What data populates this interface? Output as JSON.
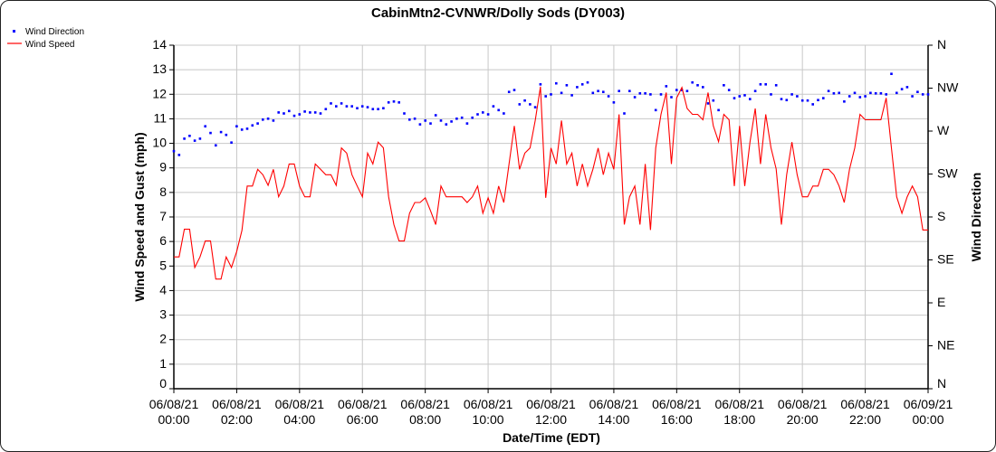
{
  "chart_data": {
    "type": "line",
    "title": "CabinMtn2-CVNWR/Dolly Sods (DY003)",
    "xlabel": "Date/Time (EDT)",
    "ylabel": "Wind Speed and Gust (mph)",
    "y2label": "Wind Direction",
    "ylim": [
      0,
      14
    ],
    "y2lim": [
      0,
      360
    ],
    "grid": true,
    "legend_position": "top-left",
    "x_interval_minutes": 10,
    "x_ticks": [
      {
        "date": "06/08/21",
        "time": "00:00"
      },
      {
        "date": "06/08/21",
        "time": "02:00"
      },
      {
        "date": "06/08/21",
        "time": "04:00"
      },
      {
        "date": "06/08/21",
        "time": "06:00"
      },
      {
        "date": "06/08/21",
        "time": "08:00"
      },
      {
        "date": "06/08/21",
        "time": "10:00"
      },
      {
        "date": "06/08/21",
        "time": "12:00"
      },
      {
        "date": "06/08/21",
        "time": "14:00"
      },
      {
        "date": "06/08/21",
        "time": "16:00"
      },
      {
        "date": "06/08/21",
        "time": "18:00"
      },
      {
        "date": "06/08/21",
        "time": "20:00"
      },
      {
        "date": "06/08/21",
        "time": "22:00"
      },
      {
        "date": "06/09/21",
        "time": "00:00"
      }
    ],
    "y_ticks": [
      "0",
      "1",
      "2",
      "3",
      "4",
      "5",
      "6",
      "7",
      "8",
      "9",
      "10",
      "11",
      "12",
      "13",
      "14"
    ],
    "y2_ticks": [
      "N",
      "NE",
      "E",
      "SE",
      "S",
      "SW",
      "W",
      "NW",
      "N"
    ],
    "series": [
      {
        "name": "Wind Direction",
        "style": "dots",
        "color": "#0000ff",
        "axis": "right",
        "values": [
          249,
          245,
          262,
          265,
          260,
          262,
          275,
          268,
          255,
          269,
          266,
          258,
          275,
          271.5,
          272.5,
          276,
          278,
          282,
          283,
          281,
          289.5,
          288.5,
          291,
          286,
          287.5,
          290.5,
          289.5,
          289.5,
          288.5,
          293,
          299,
          296,
          299,
          296,
          296,
          294,
          296,
          295,
          293,
          293,
          294,
          300,
          301,
          300,
          288.5,
          282,
          283,
          277,
          281,
          278,
          286.6,
          281,
          277,
          280,
          283,
          284,
          278,
          284,
          287.5,
          289.5,
          287.5,
          296,
          292,
          288.5,
          311,
          313,
          298,
          302,
          298,
          295,
          319,
          306.5,
          308.5,
          320,
          310,
          318,
          307.5,
          316,
          319,
          321,
          310,
          312,
          311,
          306.5,
          300,
          312,
          288.5,
          312,
          305.5,
          309.5,
          309.5,
          308.5,
          292,
          308.5,
          317,
          305.5,
          313,
          313,
          312,
          321,
          318,
          316,
          299,
          302,
          292,
          318,
          313,
          304.5,
          306.5,
          307.5,
          303.5,
          312,
          319,
          319,
          308.5,
          318,
          303.5,
          302.5,
          308.5,
          306.5,
          302,
          302,
          298,
          302.5,
          304.5,
          312,
          309.5,
          310,
          301,
          306.5,
          310,
          305.5,
          306.5,
          310,
          309.5,
          309.5,
          308.5,
          330,
          310,
          314,
          316,
          306.5,
          311,
          308.5,
          308.5
        ]
      },
      {
        "name": "Wind Speed",
        "style": "line",
        "color": "#ff0000",
        "axis": "left",
        "values": [
          5.37,
          5.37,
          6.5,
          6.5,
          4.94,
          5.37,
          6.02,
          6.02,
          4.47,
          4.47,
          5.37,
          4.94,
          5.59,
          6.45,
          8.26,
          8.26,
          8.94,
          8.72,
          8.29,
          8.94,
          7.82,
          8.26,
          9.16,
          9.16,
          8.26,
          7.82,
          7.82,
          9.16,
          8.94,
          8.72,
          8.72,
          8.29,
          9.81,
          9.6,
          8.72,
          8.26,
          7.82,
          9.6,
          9.16,
          10.05,
          9.82,
          7.82,
          6.69,
          6.02,
          6.02,
          7.15,
          7.59,
          7.59,
          7.78,
          7.25,
          6.69,
          8.26,
          7.82,
          7.82,
          7.82,
          7.82,
          7.59,
          7.82,
          8.26,
          7.15,
          7.78,
          7.15,
          8.26,
          7.59,
          9.16,
          10.71,
          8.94,
          9.6,
          9.81,
          10.93,
          12.31,
          7.78,
          9.81,
          9.16,
          10.93,
          9.16,
          9.6,
          8.26,
          9.16,
          8.26,
          8.94,
          9.81,
          8.72,
          9.6,
          8.94,
          11.18,
          6.69,
          7.82,
          8.26,
          6.69,
          9.16,
          6.47,
          9.81,
          11.18,
          12.07,
          9.16,
          11.85,
          12.28,
          11.42,
          11.18,
          11.18,
          10.96,
          12.07,
          10.71,
          10.07,
          11.18,
          10.96,
          8.26,
          10.71,
          8.26,
          10.05,
          11.42,
          9.16,
          11.18,
          9.82,
          8.96,
          6.69,
          8.72,
          10.05,
          8.72,
          7.82,
          7.82,
          8.26,
          8.26,
          8.94,
          8.94,
          8.72,
          8.26,
          7.59,
          8.94,
          9.81,
          11.18,
          10.96,
          10.96,
          10.96,
          10.96,
          11.85,
          9.82,
          7.82,
          7.15,
          7.82,
          8.26,
          7.82,
          6.47,
          6.47
        ]
      }
    ]
  }
}
